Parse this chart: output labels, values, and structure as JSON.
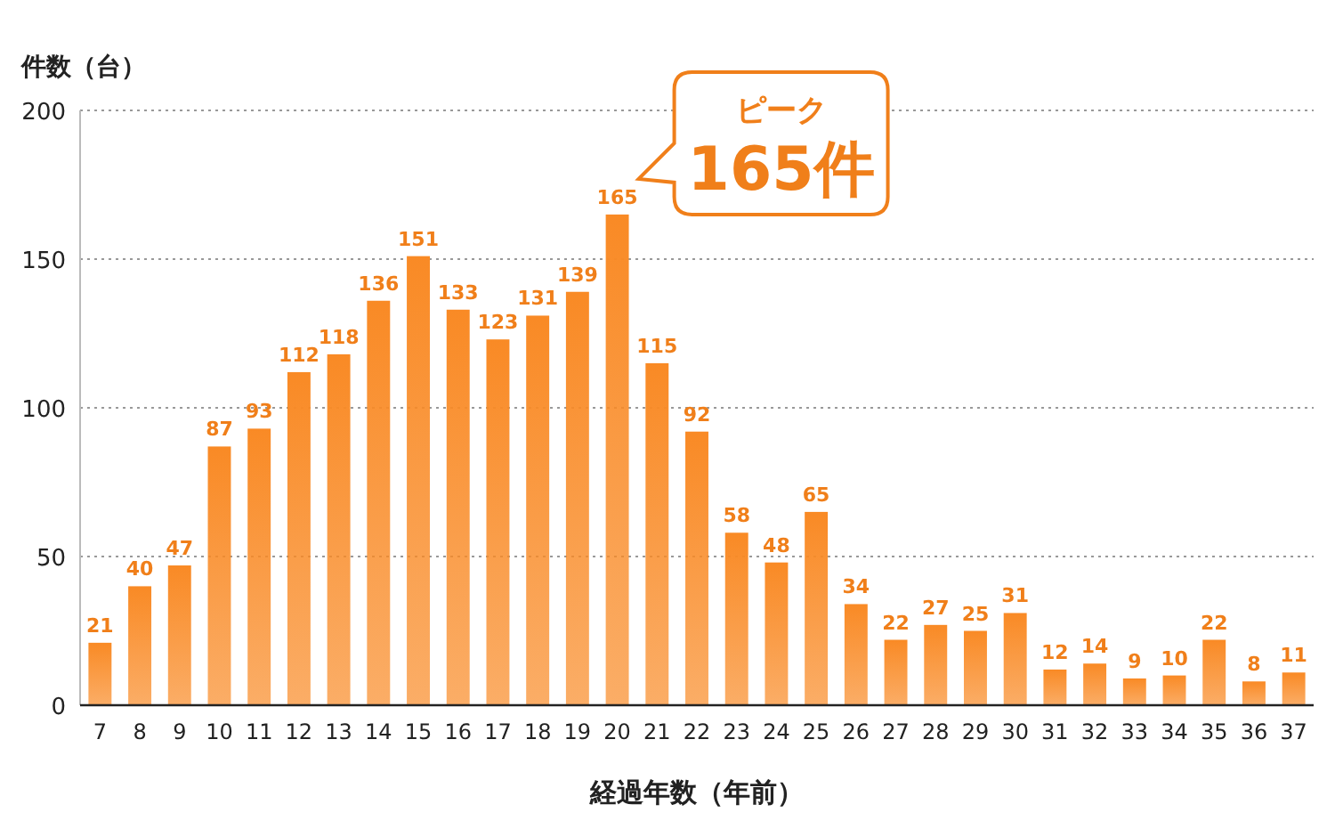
{
  "chart_data": {
    "type": "bar",
    "categories": [
      "7",
      "8",
      "9",
      "10",
      "11",
      "12",
      "13",
      "14",
      "15",
      "16",
      "17",
      "18",
      "19",
      "20",
      "21",
      "22",
      "23",
      "24",
      "25",
      "26",
      "27",
      "28",
      "29",
      "30",
      "31",
      "32",
      "33",
      "34",
      "35",
      "36",
      "37"
    ],
    "values": [
      21,
      40,
      47,
      87,
      93,
      112,
      118,
      136,
      151,
      133,
      123,
      131,
      139,
      165,
      115,
      92,
      58,
      48,
      65,
      34,
      22,
      27,
      25,
      31,
      12,
      14,
      9,
      10,
      22,
      8,
      11
    ],
    "color": "#f98a25",
    "ylim": [
      0,
      200
    ],
    "yticks": [
      0,
      50,
      100,
      150,
      200
    ],
    "grid": "y",
    "data_labels": true,
    "xlabel": "経過年数（年前）",
    "ylabel": "件数（台）",
    "annotations": [
      {
        "text": "ピーク 165件",
        "x": "20",
        "y": 165
      }
    ]
  }
}
